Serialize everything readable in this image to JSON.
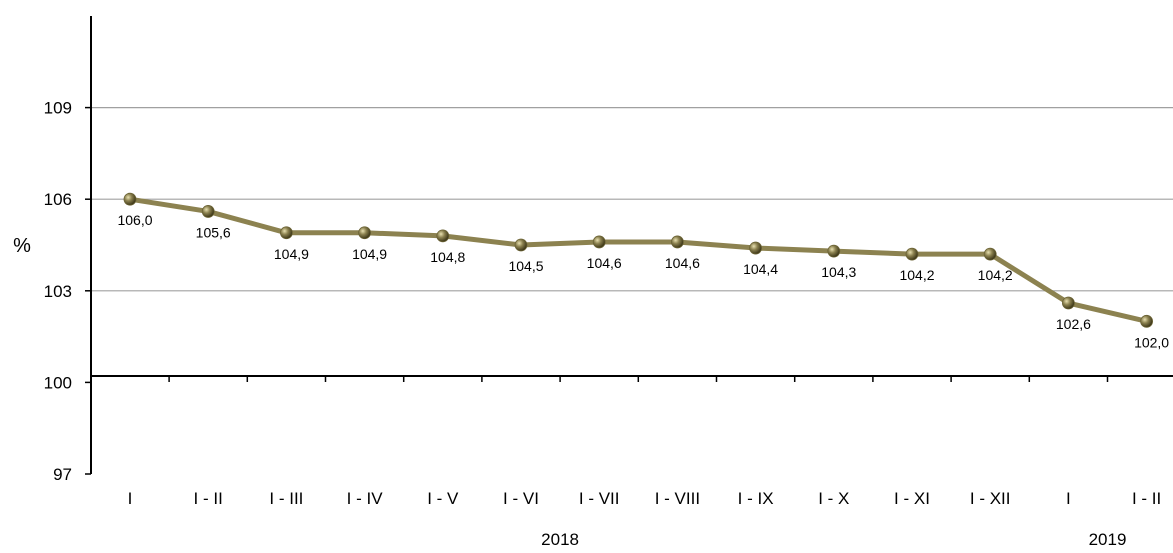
{
  "chart_data": {
    "type": "line",
    "ylabel": "%",
    "xlabel": "",
    "ylim": [
      97,
      112
    ],
    "yticks": [
      97,
      100,
      103,
      106,
      109
    ],
    "categories": [
      "I",
      "I - II",
      "I - III",
      "I - IV",
      "I - V",
      "I - VI",
      "I - VII",
      "I - VIII",
      "I - IX",
      "I - X",
      "I - XI",
      "I - XII",
      "I",
      "I - II"
    ],
    "groups": [
      {
        "label": "2018",
        "from": 0,
        "to": 11
      },
      {
        "label": "2019",
        "from": 12,
        "to": 13
      }
    ],
    "series": [
      {
        "values": [
          106.0,
          105.6,
          104.9,
          104.9,
          104.8,
          104.5,
          104.6,
          104.6,
          104.4,
          104.3,
          104.2,
          104.2,
          102.6,
          102.0
        ],
        "labels": [
          "106,0",
          "105,6",
          "104,9",
          "104,9",
          "104,8",
          "104,5",
          "104,6",
          "104,6",
          "104,4",
          "104,3",
          "104,2",
          "104,2",
          "102,6",
          "102,0"
        ]
      }
    ],
    "colors": {
      "line": "#8c8250",
      "marker": "#6b6335",
      "grid": "#a0a0a0",
      "axis": "#000000"
    },
    "grid": true,
    "legend": "none"
  }
}
